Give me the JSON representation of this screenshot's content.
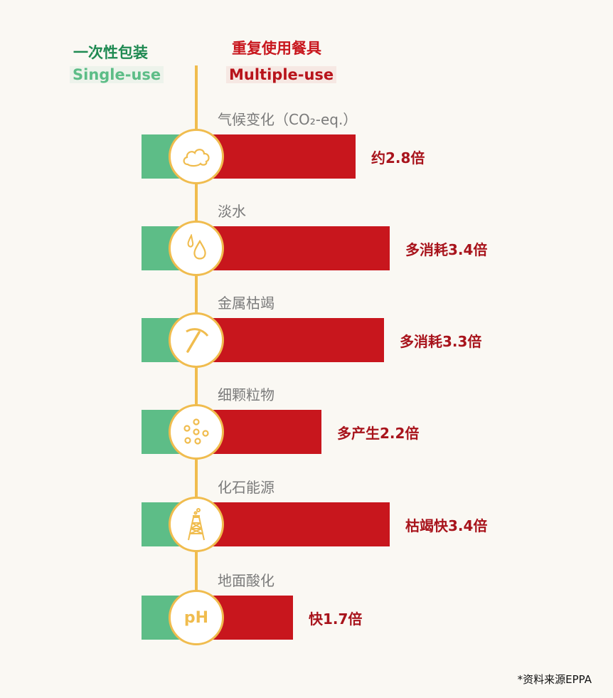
{
  "colors": {
    "single_use": "#5dbd87",
    "multiple_use": "#c8161d",
    "axis": "#f0bc4e",
    "label": "#a8141c"
  },
  "header": {
    "single_cn": "一次性包装",
    "single_en": "Single-use",
    "multi_cn": "重复使用餐具",
    "multi_en": "Multiple-use"
  },
  "chart_data": {
    "type": "bar",
    "categories": [
      "气候变化（CO₂-eq.）",
      "淡水",
      "金属枯竭",
      "细颗粒物",
      "化石能源",
      "地面酸化"
    ],
    "series": [
      {
        "name": "一次性包装 Single-use",
        "values": [
          1,
          1,
          1,
          1,
          1,
          1
        ]
      },
      {
        "name": "重复使用餐具 Multiple-use",
        "values": [
          2.8,
          3.4,
          3.3,
          2.2,
          3.4,
          1.7
        ]
      }
    ],
    "data_labels": [
      "约2.8倍",
      "多消耗3.4倍",
      "多消耗3.3倍",
      "多产生2.2倍",
      "枯竭快3.4倍",
      "快1.7倍"
    ],
    "icons": [
      "cloud-icon",
      "water-drop-icon",
      "pickaxe-icon",
      "particles-icon",
      "oil-rig-icon",
      "ph-icon"
    ],
    "orientation": "horizontal"
  },
  "ph_text": "pH",
  "source": "*资料来源EPPA"
}
